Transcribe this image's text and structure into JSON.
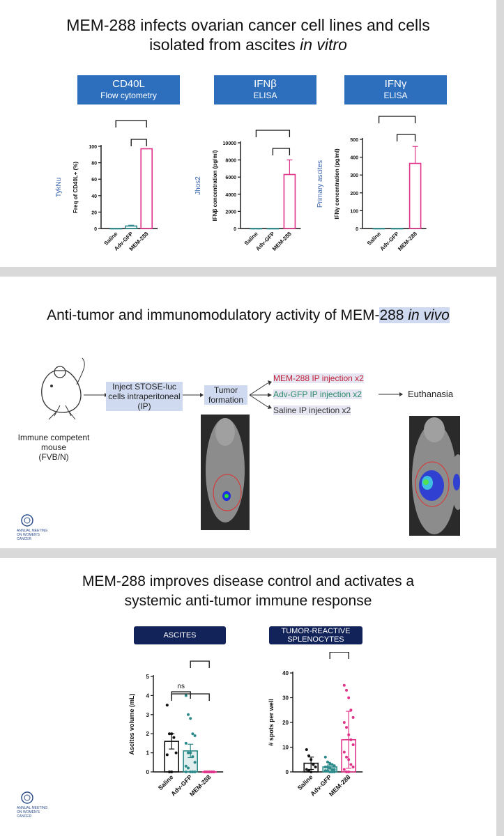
{
  "slide1": {
    "title_line1": "MEM-288 infects ovarian cancer cell lines and cells",
    "title_line2_a": "isolated from ascites ",
    "title_line2_b": "in vitro",
    "panels": [
      {
        "box_line1": "CD40L",
        "box_line2": "Flow cytometry",
        "side_label": "TykNu"
      },
      {
        "box_line1": "IFNβ",
        "box_line2": "ELISA",
        "side_label": "Jhos2"
      },
      {
        "box_line1": "IFNγ",
        "box_line2": "ELISA",
        "side_label": "Primary ascites"
      }
    ]
  },
  "slide2": {
    "title_a": "Anti-tumor and immunomodulatory activity of MEM-",
    "title_b": "288 ",
    "title_c": "in vivo",
    "mouse_label_1": "Immune competent",
    "mouse_label_2": "mouse",
    "mouse_label_3": "(FVB/N)",
    "inject_1": "Inject STOSE-luc",
    "inject_2": "cells intraperitoneal",
    "inject_3": "(IP)",
    "tumor_1": "Tumor",
    "tumor_2": "formation",
    "arm_1": "MEM-288 IP injection x2",
    "arm_2": "Adv-GFP IP injection x2",
    "arm_3": "Saline IP injection x2",
    "euthanasia": "Euthanasia",
    "colors": {
      "mem288": "#c0213a",
      "advgfp": "#2a8a6a",
      "saline": "#333333"
    }
  },
  "slide3": {
    "title_line1": "MEM-288 improves disease control and activates a",
    "title_line2": "systemic anti-tumor immune response",
    "box_left": "ASCITES",
    "box_right_1": "TUMOR-REACTIVE",
    "box_right_2": "SPLENOCYTES"
  },
  "logo": {
    "line1": "ANNUAL MEETING",
    "line2": "ON WOMEN'S CANCER"
  },
  "chart_data": [
    {
      "type": "bar",
      "categories": [
        "Saline",
        "Adv-GFP",
        "MEM-288"
      ],
      "values": [
        0,
        3,
        97
      ],
      "errors": [
        0,
        1,
        0
      ],
      "ylabel": "Freq of CD40L+ (%)",
      "ylim": [
        0,
        100
      ],
      "yticks": [
        0,
        20,
        40,
        60,
        80,
        100
      ],
      "colors": [
        "#2d8a8a",
        "#2d8a8a",
        "#e0338a"
      ]
    },
    {
      "type": "bar",
      "categories": [
        "Saline",
        "Adv-GFP",
        "MEM-288"
      ],
      "values": [
        0,
        0,
        6300
      ],
      "errors": [
        0,
        0,
        1700
      ],
      "ylabel": "IFNβ concentration (pg/ml)",
      "ylim": [
        0,
        10000
      ],
      "yticks": [
        0,
        2000,
        4000,
        6000,
        8000,
        10000
      ],
      "colors": [
        "#2d8a8a",
        "#2d8a8a",
        "#e0338a"
      ]
    },
    {
      "type": "bar",
      "categories": [
        "Saline",
        "Adv-GFP",
        "MEM-288"
      ],
      "values": [
        0,
        0,
        365
      ],
      "errors": [
        0,
        0,
        95
      ],
      "ylabel": "IFNγ concentration (pg/ml)",
      "ylim": [
        0,
        500
      ],
      "yticks": [
        0,
        100,
        200,
        300,
        400,
        500
      ],
      "colors": [
        "#2d8a8a",
        "#2d8a8a",
        "#e0338a"
      ]
    },
    {
      "type": "bar",
      "categories": [
        "Saline",
        "Adv-GFP",
        "MEM-288"
      ],
      "values": [
        1.6,
        1.1,
        0
      ],
      "errors": [
        0.4,
        0.35,
        0
      ],
      "ylabel": "Ascites volume (mL)",
      "ylim": [
        0,
        5
      ],
      "yticks": [
        0,
        1,
        2,
        3,
        4,
        5
      ],
      "annotation": "ns",
      "colors": [
        "#111111",
        "#2d8a8a",
        "#e0338a"
      ],
      "points": [
        [
          3.5,
          2.0,
          2.0,
          1.8,
          1.0,
          0.9,
          0.0,
          0.0
        ],
        [
          4.0,
          3.0,
          2.8,
          2.0,
          1.9,
          1.5,
          1.0,
          1.0,
          0.8,
          0.5,
          0.3,
          0.2,
          0.0,
          0.0,
          0.0,
          0.0
        ],
        [
          0,
          0,
          0,
          0,
          0,
          0,
          0,
          0,
          0,
          0,
          0,
          0,
          0,
          0,
          0
        ]
      ]
    },
    {
      "type": "bar",
      "categories": [
        "Saline",
        "Adv-GFP",
        "MEM-288"
      ],
      "values": [
        3.5,
        2.0,
        13.0
      ],
      "errors": [
        2.5,
        0.8,
        11.5
      ],
      "ylabel": "# spots per well",
      "ylim": [
        0,
        40
      ],
      "yticks": [
        0,
        10,
        20,
        30,
        40
      ],
      "colors": [
        "#111111",
        "#2d8a8a",
        "#e0338a"
      ],
      "points": [
        [
          9.0,
          6.5,
          5.0,
          3.0,
          2.0,
          1.0,
          0.5,
          0.0
        ],
        [
          6.0,
          4.0,
          3.5,
          3.0,
          2.5,
          2.0,
          2.0,
          1.5,
          1.0,
          1.0,
          0.5,
          0.5,
          0.0,
          0.0,
          0.0
        ],
        [
          35.0,
          33.0,
          30.0,
          25.0,
          22.0,
          20.0,
          18.0,
          15.0,
          13.0,
          11.0,
          8.0,
          6.0,
          5.0,
          3.0,
          2.0,
          1.0,
          0.0,
          0.0
        ]
      ]
    }
  ]
}
